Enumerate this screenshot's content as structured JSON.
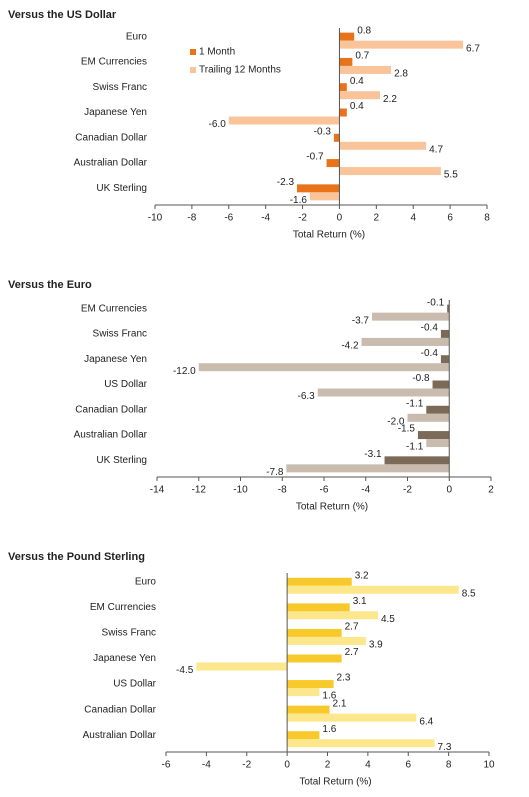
{
  "chart_data": [
    {
      "type": "hbar",
      "title": "Versus the US Dollar",
      "xlabel": "Total Return (%)",
      "legend": "upper-left",
      "categories": [
        "Euro",
        "EM Currencies",
        "Swiss Franc",
        "Japanese Yen",
        "Canadian Dollar",
        "Australian Dollar",
        "UK Sterling"
      ],
      "series": [
        {
          "name": "1 Month",
          "color": "#e8731a",
          "values": [
            0.8,
            0.7,
            0.4,
            0.4,
            -0.3,
            -0.7,
            -2.3
          ]
        },
        {
          "name": "Trailing 12 Months",
          "color": "#f9c49a",
          "values": [
            6.7,
            2.8,
            2.2,
            -6.0,
            4.7,
            5.5,
            -1.6
          ],
          "value_labels": [
            "6.7",
            "2.8",
            "2.2",
            "-6.0",
            "4.7",
            "5.5",
            "-1.6"
          ]
        }
      ],
      "xlim": [
        -10,
        8
      ],
      "xticks": [
        -10,
        -8,
        -6,
        -4,
        -2,
        0,
        2,
        4,
        6,
        8
      ]
    },
    {
      "type": "hbar",
      "title": "Versus the Euro",
      "xlabel": "Total Return (%)",
      "categories": [
        "EM Currencies",
        "Swiss Franc",
        "Japanese Yen",
        "US Dollar",
        "Canadian Dollar",
        "Australian Dollar",
        "UK Sterling"
      ],
      "series": [
        {
          "color": "#7b6a57",
          "values": [
            -0.1,
            -0.4,
            -0.4,
            -0.8,
            -1.1,
            -1.5,
            -3.1
          ]
        },
        {
          "color": "#c9bcae",
          "values": [
            -3.7,
            -4.2,
            -12.0,
            -6.3,
            -2.0,
            -1.1,
            -7.8
          ],
          "value_labels": [
            "-3.7",
            "-4.2",
            "-12.0",
            "-6.3",
            "-2.0",
            "-1.1",
            "-7.8"
          ]
        }
      ],
      "xlim": [
        -14,
        2
      ],
      "xticks": [
        -14,
        -12,
        -10,
        -8,
        -6,
        -4,
        -2,
        0,
        2
      ]
    },
    {
      "type": "hbar",
      "title": "Versus the Pound Sterling",
      "xlabel": "Total Return (%)",
      "categories": [
        "Euro",
        "EM Currencies",
        "Swiss Franc",
        "Japanese Yen",
        "US Dollar",
        "Canadian Dollar",
        "Australian Dollar"
      ],
      "series": [
        {
          "color": "#f8c92a",
          "values": [
            3.2,
            3.1,
            2.7,
            2.7,
            2.3,
            2.1,
            1.6
          ]
        },
        {
          "color": "#fde78c",
          "values": [
            8.5,
            4.5,
            3.9,
            -4.5,
            1.6,
            6.4,
            7.3
          ]
        }
      ],
      "xlim": [
        -6,
        10
      ],
      "xticks": [
        -6,
        -4,
        -2,
        0,
        2,
        4,
        6,
        8,
        10
      ]
    }
  ]
}
